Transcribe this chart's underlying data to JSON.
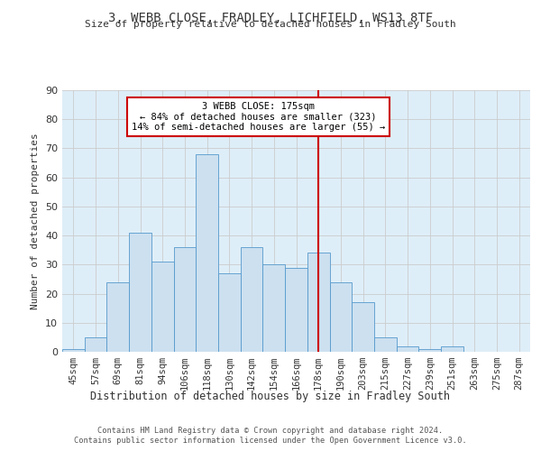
{
  "title_line1": "3, WEBB CLOSE, FRADLEY, LICHFIELD, WS13 8TF",
  "title_line2": "Size of property relative to detached houses in Fradley South",
  "xlabel": "Distribution of detached houses by size in Fradley South",
  "ylabel": "Number of detached properties",
  "footer_line1": "Contains HM Land Registry data © Crown copyright and database right 2024.",
  "footer_line2": "Contains public sector information licensed under the Open Government Licence v3.0.",
  "bin_labels": [
    "45sqm",
    "57sqm",
    "69sqm",
    "81sqm",
    "94sqm",
    "106sqm",
    "118sqm",
    "130sqm",
    "142sqm",
    "154sqm",
    "166sqm",
    "178sqm",
    "190sqm",
    "203sqm",
    "215sqm",
    "227sqm",
    "239sqm",
    "251sqm",
    "263sqm",
    "275sqm",
    "287sqm"
  ],
  "bar_values": [
    1,
    5,
    24,
    41,
    31,
    36,
    68,
    27,
    36,
    30,
    29,
    34,
    24,
    17,
    5,
    2,
    1,
    2,
    0,
    0,
    0
  ],
  "bar_color": "#cce0f0",
  "bar_edge_color": "#5599cc",
  "grid_color": "#cccccc",
  "bg_color": "#deeef8",
  "annotation_text_line1": "3 WEBB CLOSE: 175sqm",
  "annotation_text_line2": "← 84% of detached houses are smaller (323)",
  "annotation_text_line3": "14% of semi-detached houses are larger (55) →",
  "annotation_box_color": "#ffffff",
  "annotation_line_color": "#cc0000",
  "ylim": [
    0,
    90
  ],
  "yticks": [
    0,
    10,
    20,
    30,
    40,
    50,
    60,
    70,
    80,
    90
  ],
  "vline_bar_index": 11
}
